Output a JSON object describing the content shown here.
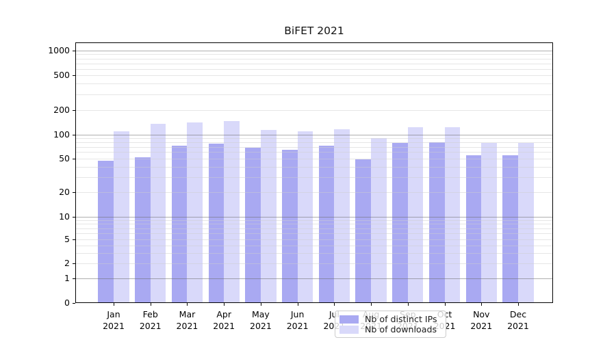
{
  "title": "BiFET 2021",
  "legend": {
    "items": [
      {
        "label": "Nb of distinct IPs",
        "color": "#a9a9f2"
      },
      {
        "label": "Nb of downloads",
        "color": "#d9d9fa"
      }
    ]
  },
  "chart_data": {
    "type": "bar",
    "title": "BiFET 2021",
    "categories": [
      "Jan 2021",
      "Feb 2021",
      "Mar 2021",
      "Apr 2021",
      "May 2021",
      "Jun 2021",
      "Jul 2021",
      "Aug 2021",
      "Sep 2021",
      "Oct 2021",
      "Nov 2021",
      "Dec 2021"
    ],
    "series": [
      {
        "name": "Nb of distinct IPs",
        "color": "#a9a9f2",
        "values": [
          47,
          52,
          72,
          77,
          68,
          64,
          72,
          49,
          79,
          80,
          55,
          55
        ]
      },
      {
        "name": "Nb of downloads",
        "color": "#d9d9fa",
        "values": [
          110,
          135,
          142,
          146,
          115,
          111,
          116,
          90,
          124,
          124,
          79,
          78
        ]
      }
    ],
    "xlabel": "",
    "ylabel": "",
    "yaxis": {
      "scale": "log-like",
      "ticks": [
        0,
        1,
        2,
        5,
        10,
        20,
        50,
        100,
        200,
        500,
        1000
      ]
    },
    "grid": true,
    "legend_position": "lower center"
  }
}
